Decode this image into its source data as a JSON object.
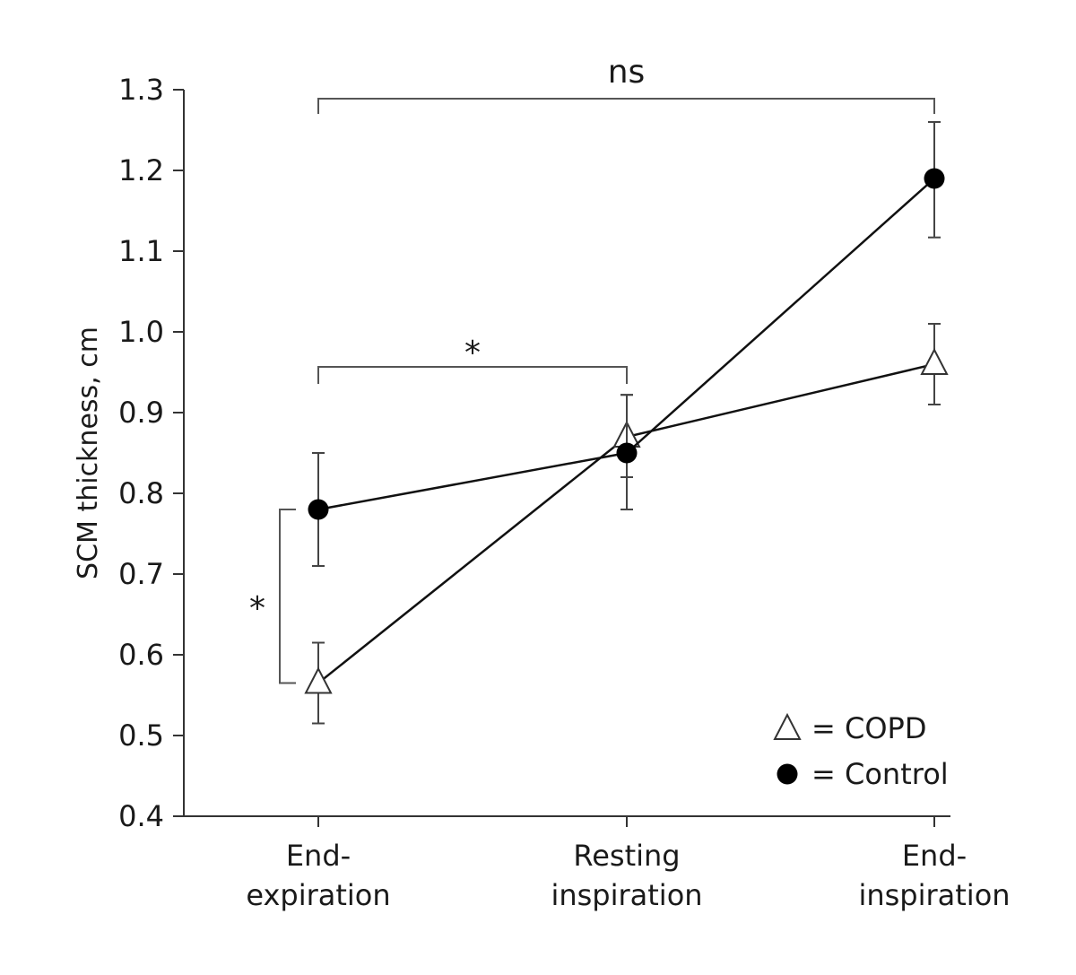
{
  "chart_data": {
    "type": "line",
    "categories": [
      [
        "End-",
        "expiration"
      ],
      [
        "Resting",
        "inspiration"
      ],
      [
        "End-",
        "inspiration"
      ]
    ],
    "ylabel": "SCM thickness, cm",
    "xlabel": "",
    "ylim": [
      0.4,
      1.3
    ],
    "yticks": [
      "0.4",
      "0.5",
      "0.6",
      "0.7",
      "0.8",
      "0.9",
      "1.0",
      "1.1",
      "1.2",
      "1.3"
    ],
    "grid": false,
    "legend_position": "bottom-right",
    "series": [
      {
        "name": "COPD",
        "marker": "open-triangle",
        "color": "#1a1a1a",
        "values": [
          0.565,
          0.87,
          0.96
        ],
        "err_low": [
          0.515,
          0.82,
          0.91
        ],
        "err_high": [
          0.615,
          0.922,
          1.01
        ]
      },
      {
        "name": "Control",
        "marker": "filled-circle",
        "color": "#000000",
        "values": [
          0.78,
          0.85,
          1.19
        ],
        "err_low": [
          0.71,
          0.78,
          1.117
        ],
        "err_high": [
          0.85,
          0.922,
          1.26
        ]
      }
    ],
    "legend": [
      {
        "symbol": "triangle",
        "label": "= COPD"
      },
      {
        "symbol": "circle",
        "label": "= Control"
      }
    ],
    "annotations": [
      {
        "text": "ns",
        "type": "bracket-top",
        "from": 0,
        "to": 2
      },
      {
        "text": "*",
        "type": "bracket-top",
        "from": 0,
        "to": 1
      },
      {
        "text": "*",
        "type": "bracket-vertical",
        "at": 0
      }
    ]
  }
}
